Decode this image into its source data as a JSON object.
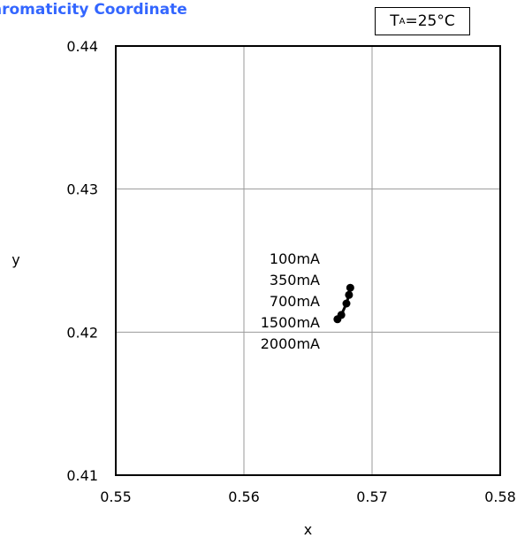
{
  "chart_data": {
    "type": "scatter",
    "title": "hromaticity Coordinate",
    "condition": {
      "symbol": "T",
      "subscript": "A",
      "rest": "=25°C"
    },
    "xlabel": "x",
    "ylabel": "y",
    "xlim": [
      0.55,
      0.58
    ],
    "ylim": [
      0.41,
      0.44
    ],
    "xticks": [
      "0.55",
      "0.56",
      "0.57",
      "0.58"
    ],
    "yticks": [
      "0.41",
      "0.42",
      "0.43",
      "0.44"
    ],
    "grid": true,
    "series": [
      {
        "points": [
          {
            "label": "100mA",
            "x": 0.5683,
            "y": 0.4231
          },
          {
            "label": "350mA",
            "x": 0.5682,
            "y": 0.4226
          },
          {
            "label": "700mA",
            "x": 0.568,
            "y": 0.422
          },
          {
            "label": "1500mA",
            "x": 0.5676,
            "y": 0.4212
          },
          {
            "label": "2000mA",
            "x": 0.5673,
            "y": 0.4209
          }
        ]
      }
    ]
  }
}
